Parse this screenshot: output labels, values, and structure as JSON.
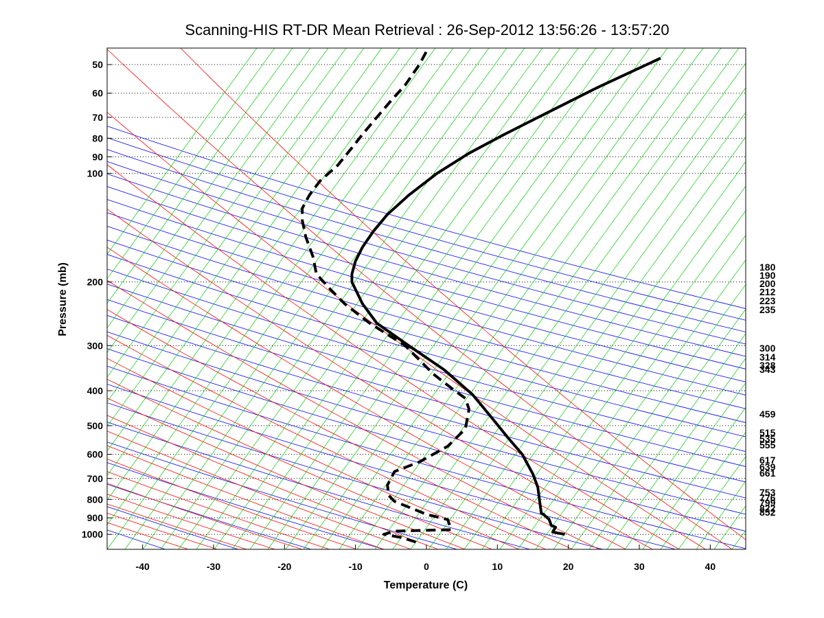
{
  "chart_data": {
    "type": "line",
    "subtype": "skew-T log-P diagram",
    "title": "Scanning-HIS RT-DR Mean Retrieval : 26-Sep-2012 13:56:26 - 13:57:20",
    "xlabel": "Temperature (C)",
    "ylabel": "Pressure (mb)",
    "xlim": [
      -45,
      45
    ],
    "ylim": [
      1100,
      45
    ],
    "y_scale": "log",
    "x_ticks": [
      -40,
      -30,
      -20,
      -10,
      0,
      10,
      20,
      30,
      40
    ],
    "y_ticks": [
      50,
      60,
      70,
      80,
      90,
      100,
      200,
      300,
      400,
      500,
      600,
      700,
      800,
      900,
      1000
    ],
    "grid": "dotted horizontal isobars",
    "series": [
      {
        "style": "solid",
        "color": "#000000",
        "x": [
          19.5,
          17.8,
          18.2,
          17.6,
          17.3,
          16.5,
          16.2,
          16.0,
          15.7,
          15.0,
          13.5,
          11.5,
          9.0,
          6.5,
          2.5,
          -2.5,
          -7.0,
          -9.0,
          -10.5,
          -10.5,
          -10.0,
          -9.0,
          -7.5,
          -5.5,
          -2.5,
          1.5,
          6.0,
          11.0,
          17.0,
          24.0,
          33.0
        ],
        "y": [
          1000,
          985,
          955,
          945,
          910,
          880,
          875,
          820,
          740,
          680,
          600,
          540,
          470,
          410,
          350,
          300,
          260,
          230,
          200,
          190,
          175,
          160,
          145,
          130,
          115,
          100,
          88,
          78,
          68,
          58,
          48
        ]
      },
      {
        "style": "dashed",
        "color": "#000000",
        "x": [
          -1.5,
          -3.5,
          -6.0,
          -4.5,
          3.5,
          3.0,
          0.0,
          -4.5,
          -5.3,
          -5.5,
          -5.0,
          -4.5,
          -1.0,
          3.0,
          5.5,
          6.0,
          5.5,
          4.0,
          1.0,
          -3.0,
          -8.0,
          -11.5,
          -13.5,
          -15.5,
          -16.0,
          -17.0,
          -17.5,
          -17.5,
          -16.5,
          -15.0,
          -12.5,
          -10.5,
          -9.0,
          -7.0,
          -5.0,
          -3.0,
          -1.0,
          0.0
        ],
        "y": [
          1050,
          1020,
          1000,
          980,
          970,
          910,
          880,
          810,
          780,
          730,
          700,
          670,
          630,
          570,
          510,
          450,
          420,
          400,
          360,
          300,
          260,
          230,
          210,
          190,
          170,
          150,
          135,
          125,
          115,
          105,
          95,
          85,
          78,
          70,
          63,
          57,
          50,
          46
        ]
      }
    ],
    "background_lines": {
      "dry_adiabats_color": "#0000ff",
      "moist_adiabats_color": "#ff0000",
      "mixing_ratio_color": "#00cc00",
      "isobar_color": "#000000"
    },
    "right_labels": [
      "180",
      "190",
      "200",
      "212",
      "223",
      "235",
      "300",
      "314",
      "328",
      "343",
      "459",
      "515",
      "535",
      "555",
      "617",
      "639",
      "661",
      "753",
      "776",
      "799",
      "822",
      "852"
    ]
  }
}
